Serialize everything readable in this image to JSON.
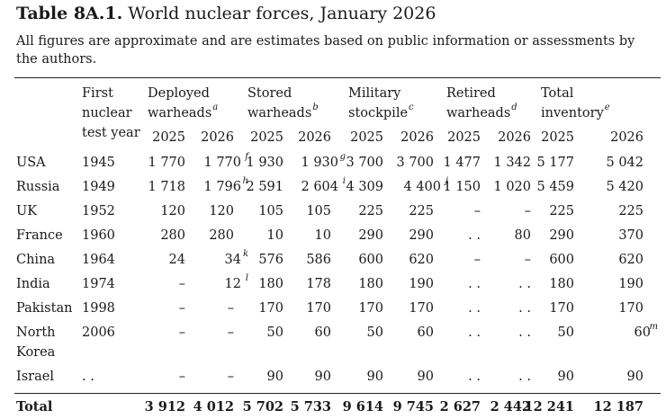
{
  "title": {
    "label": "Table 8A.1.",
    "text": "World nuclear forces, January 2026"
  },
  "note": "All figures are approximate and are estimates based on public information or assessments by the authors.",
  "headers": {
    "first_test": [
      "First",
      "nuclear",
      "test year"
    ],
    "groups": [
      {
        "lines": [
          "Deployed",
          "warheads"
        ],
        "sup": "a"
      },
      {
        "lines": [
          "Stored",
          "warheads"
        ],
        "sup": "b"
      },
      {
        "lines": [
          "Military",
          "stockpile"
        ],
        "sup": "c"
      },
      {
        "lines": [
          "Retired",
          "warheads"
        ],
        "sup": "d"
      },
      {
        "lines": [
          "Total",
          "inventory"
        ],
        "sup": "e"
      }
    ],
    "years": [
      "2025",
      "2026"
    ]
  },
  "rows": [
    {
      "country": [
        "USA"
      ],
      "test": "1945",
      "cells": [
        "1 770",
        "1 770",
        "1 930",
        "1 930",
        "3 700",
        "3 700",
        "1 477",
        "1 342",
        "5 177",
        "5 042"
      ],
      "sups": [
        "",
        "f",
        "",
        "g",
        "",
        "",
        "",
        "",
        "",
        ""
      ]
    },
    {
      "country": [
        "Russia"
      ],
      "test": "1949",
      "cells": [
        "1 718",
        "1 796",
        "2 591",
        "2 604",
        "4 309",
        "4 400",
        "1 150",
        "1 020",
        "5 459",
        "5 420"
      ],
      "sups": [
        "",
        "h",
        "",
        "i",
        "",
        "j",
        "",
        "",
        "",
        ""
      ]
    },
    {
      "country": [
        "UK"
      ],
      "test": "1952",
      "cells": [
        "120",
        "120",
        "105",
        "105",
        "225",
        "225",
        "–",
        "–",
        "225",
        "225"
      ],
      "sups": [
        "",
        "",
        "",
        "",
        "",
        "",
        "",
        "",
        "",
        ""
      ]
    },
    {
      "country": [
        "France"
      ],
      "test": "1960",
      "cells": [
        "280",
        "280",
        "10",
        "10",
        "290",
        "290",
        ". .",
        "80",
        "290",
        "370"
      ],
      "sups": [
        "",
        "",
        "",
        "",
        "",
        "",
        "",
        "",
        "",
        ""
      ]
    },
    {
      "country": [
        "China"
      ],
      "test": "1964",
      "cells": [
        "24",
        "34",
        "576",
        "586",
        "600",
        "620",
        "–",
        "–",
        "600",
        "620"
      ],
      "sups": [
        "",
        "k",
        "",
        "",
        "",
        "",
        "",
        "",
        "",
        ""
      ]
    },
    {
      "country": [
        "India"
      ],
      "test": "1974",
      "cells": [
        "–",
        "12",
        "180",
        "178",
        "180",
        "190",
        ". .",
        ". .",
        "180",
        "190"
      ],
      "sups": [
        "",
        "l",
        "",
        "",
        "",
        "",
        "",
        "",
        "",
        ""
      ]
    },
    {
      "country": [
        "Pakistan"
      ],
      "test": "1998",
      "cells": [
        "–",
        "–",
        "170",
        "170",
        "170",
        "170",
        ". .",
        ". .",
        "170",
        "170"
      ],
      "sups": [
        "",
        "",
        "",
        "",
        "",
        "",
        "",
        "",
        "",
        ""
      ]
    },
    {
      "country": [
        "North",
        "Korea"
      ],
      "test": "2006",
      "cells": [
        "–",
        "–",
        "50",
        "60",
        "50",
        "60",
        ". .",
        ". .",
        "50",
        "60"
      ],
      "sups": [
        "",
        "",
        "",
        "",
        "",
        "",
        "",
        "",
        "",
        "m"
      ]
    },
    {
      "country": [
        "Israel"
      ],
      "test": ". .",
      "cells": [
        "–",
        "–",
        "90",
        "90",
        "90",
        "90",
        ". .",
        ". .",
        "90",
        "90"
      ],
      "sups": [
        "",
        "",
        "",
        "",
        "",
        "",
        "",
        "",
        "",
        ""
      ]
    }
  ],
  "total": {
    "label": "Total",
    "cells": [
      "3 912",
      "4 012",
      "5 702",
      "5 733",
      "9 614",
      "9 745",
      "2 627",
      "2 442",
      "12 241",
      "12 187"
    ]
  }
}
